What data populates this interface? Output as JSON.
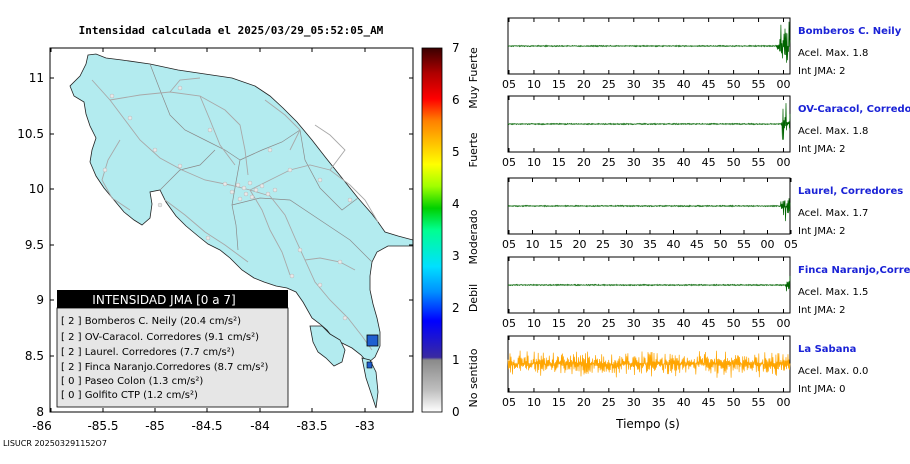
{
  "map": {
    "title": "Intensidad calculada el 2025/03/29_05:52:05_AM",
    "x_ticks": [
      "-86",
      "-85.5",
      "-85",
      "-84.5",
      "-84",
      "-83.5",
      "-83"
    ],
    "y_ticks": [
      "11",
      "10.5",
      "10",
      "9.5",
      "9",
      "8.5",
      "8"
    ],
    "footer": "LISUCR 202503291152O7"
  },
  "legend": {
    "title": "INTENSIDAD JMA [0 a 7]",
    "entries": [
      {
        "label": "[ 2 ]  Bomberos C. Neily (20.4 cm/s²)"
      },
      {
        "label": "[ 2 ]  OV-Caracol. Corredores (9.1 cm/s²)"
      },
      {
        "label": "[ 2 ]  Laurel. Corredores (7.7 cm/s²)"
      },
      {
        "label": "[ 2 ]  Finca Naranjo.Corredores (8.7 cm/s²)"
      },
      {
        "label": "[ 0 ]  Paseo Colon (1.3 cm/s²)"
      },
      {
        "label": "[ 0 ]  Golfito CTP (1.2 cm/s²)"
      }
    ]
  },
  "colorbar": {
    "ticks": [
      "0",
      "1",
      "2",
      "3",
      "4",
      "5",
      "6",
      "7"
    ],
    "labels": [
      "No sentido",
      "Debil",
      "Moderado",
      "Fuerte",
      "Muy Fuerte"
    ]
  },
  "traces": {
    "x_ticks": [
      "05",
      "10",
      "15",
      "20",
      "25",
      "30",
      "35",
      "40",
      "45",
      "50",
      "55",
      "00"
    ],
    "x_ticks_row3": [
      "05",
      "10",
      "15",
      "20",
      "25",
      "30",
      "35",
      "40",
      "45",
      "50",
      "55",
      "00",
      "05"
    ],
    "xlabel": "Tiempo (s)",
    "stations": [
      {
        "name": "Bomberos C. Neily",
        "acel": "Acel. Max. 1.8",
        "jma": "Int JMA: 2",
        "color": "#006400"
      },
      {
        "name": "OV-Caracol, Corredores",
        "acel": "Acel. Max. 1.8",
        "jma": "Int JMA: 2",
        "color": "#006400"
      },
      {
        "name": "Laurel, Corredores",
        "acel": "Acel. Max. 1.7",
        "jma": "Int JMA: 2",
        "color": "#006400"
      },
      {
        "name": "Finca Naranjo,Corredores",
        "acel": "Acel. Max. 1.5",
        "jma": "Int JMA: 2",
        "color": "#006400"
      },
      {
        "name": "La Sabana",
        "acel": "Acel. Max. 0.0",
        "jma": "Int JMA: 0",
        "color": "#ffa500"
      }
    ]
  },
  "chart_data": [
    {
      "type": "heatmap",
      "title": "Intensidad calculada el 2025/03/29_05:52:05_AM",
      "xlabel": "",
      "ylabel": "",
      "xlim": [
        -86.5,
        -82.5
      ],
      "ylim": [
        8,
        11.3
      ],
      "stations_marked": [
        {
          "lon": -82.95,
          "lat": 8.65,
          "jma": 2
        },
        {
          "lon": -82.97,
          "lat": 8.42,
          "jma": 2
        }
      ],
      "colorbar_range": [
        0,
        7
      ]
    },
    {
      "type": "line",
      "xlabel": "Tiempo (s)",
      "series": [
        {
          "name": "Bomberos C. Neily",
          "onset_s": 57,
          "relative_amp": 1.0
        },
        {
          "name": "OV-Caracol, Corredores",
          "onset_s": 58,
          "relative_amp": 1.0
        },
        {
          "name": "Laurel, Corredores",
          "onset_s": 58,
          "relative_amp": 1.0
        },
        {
          "name": "Finca Naranjo,Corredores",
          "onset_s": 59,
          "relative_amp": 1.0
        },
        {
          "name": "La Sabana",
          "onset_s": 0,
          "relative_amp": 0.6
        }
      ]
    }
  ]
}
